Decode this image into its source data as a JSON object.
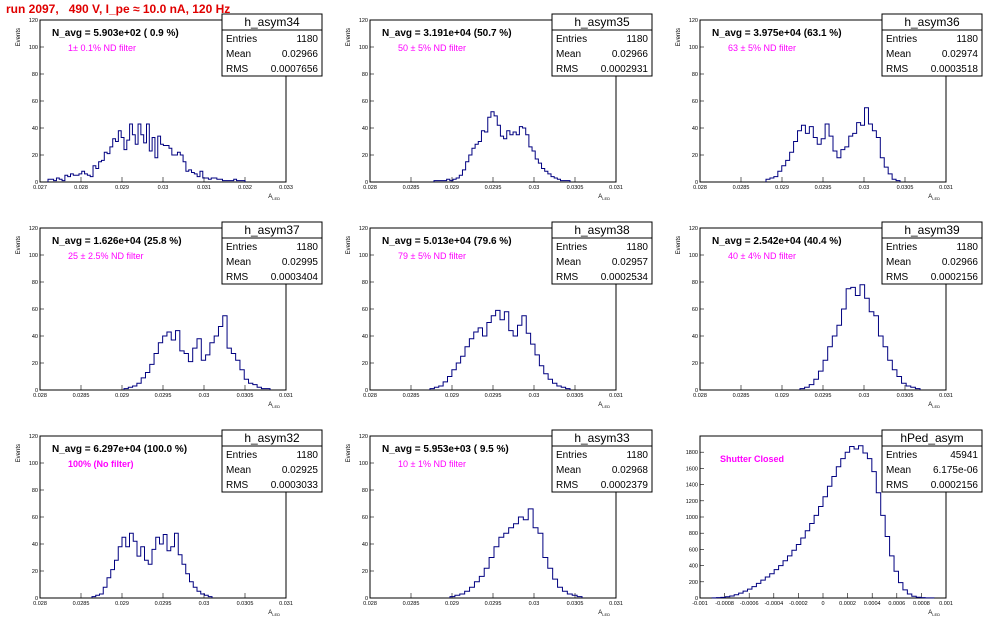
{
  "header": {
    "title": "run 2097,   490 V, I_pe ≈ 10.0 nA, 120 Hz"
  },
  "colors": {
    "hist_line": "#000080",
    "annotation": "#ff00ff",
    "run_title": "#e00000"
  },
  "chart_data": [
    {
      "type": "bar",
      "name": "h_asym34",
      "navg_label": "N_avg = 5.903e+02 ( 0.9 %)",
      "filter_label": "1± 0.1% ND filter",
      "stats": {
        "entries": "1180",
        "mean": "0.02966",
        "rms": "0.0007656"
      },
      "xlabel": "A_LED",
      "ylabel": "Events",
      "xlim": [
        0.027,
        0.033
      ],
      "ylim": [
        0,
        120
      ],
      "xticks": [
        "0.027",
        "0.028",
        "0.029",
        "0.03",
        "0.031",
        "0.032",
        "0.033"
      ],
      "yticks": [
        "0",
        "20",
        "40",
        "60",
        "80",
        "100",
        "120"
      ],
      "values": [
        2,
        2,
        1,
        3,
        2,
        1,
        5,
        4,
        6,
        5,
        5,
        6,
        8,
        6,
        5,
        4,
        12,
        10,
        15,
        16,
        22,
        21,
        26,
        32,
        30,
        38,
        33,
        24,
        31,
        43,
        35,
        28,
        43,
        35,
        29,
        43,
        23,
        33,
        18,
        34,
        28,
        27,
        27,
        25,
        20,
        20,
        22,
        20,
        15,
        8,
        9,
        7,
        6,
        4,
        8,
        3,
        3,
        2,
        3,
        3,
        2,
        2,
        1,
        1,
        1,
        1,
        2,
        1,
        1,
        1
      ]
    },
    {
      "type": "bar",
      "name": "h_asym35",
      "navg_label": "N_avg = 3.191e+04 (50.7 %)",
      "filter_label": "50 ± 5% ND filter",
      "stats": {
        "entries": "1180",
        "mean": "0.02966",
        "rms": "0.0002931"
      },
      "xlabel": "A_LED",
      "ylabel": "Events",
      "xlim": [
        0.028,
        0.031
      ],
      "ylim": [
        0,
        120
      ],
      "xticks": [
        "0.028",
        "0.0285",
        "0.029",
        "0.0295",
        "0.03",
        "0.0305",
        "0.031"
      ],
      "yticks": [
        "0",
        "20",
        "40",
        "60",
        "80",
        "100",
        "120"
      ],
      "values": [
        1,
        1,
        1,
        1,
        2,
        1,
        2,
        3,
        5,
        9,
        15,
        20,
        25,
        28,
        30,
        38,
        37,
        48,
        52,
        49,
        42,
        34,
        32,
        38,
        35,
        37,
        35,
        41,
        40,
        35,
        26,
        23,
        17,
        14,
        10,
        8,
        6,
        4,
        3,
        2,
        1,
        1,
        1
      ]
    },
    {
      "type": "bar",
      "name": "h_asym36",
      "navg_label": "N_avg = 3.975e+04 (63.1 %)",
      "filter_label": "63 ± 5% ND filter",
      "stats": {
        "entries": "1180",
        "mean": "0.02974",
        "rms": "0.0003518"
      },
      "xlabel": "A_LED",
      "ylabel": "Events",
      "xlim": [
        0.028,
        0.031
      ],
      "ylim": [
        0,
        120
      ],
      "xticks": [
        "0.028",
        "0.0285",
        "0.029",
        "0.0295",
        "0.03",
        "0.0305",
        "0.031"
      ],
      "yticks": [
        "0",
        "20",
        "40",
        "60",
        "80",
        "100",
        "120"
      ],
      "values": [
        2,
        3,
        4,
        8,
        12,
        16,
        22,
        30,
        38,
        42,
        36,
        41,
        33,
        28,
        32,
        43,
        34,
        23,
        18,
        24,
        26,
        34,
        36,
        44,
        42,
        55,
        43,
        38,
        33,
        18,
        11,
        6,
        2,
        1
      ]
    },
    {
      "type": "bar",
      "name": "h_asym37",
      "navg_label": "N_avg = 1.626e+04 (25.8 %)",
      "filter_label": "25 ± 2.5% ND filter",
      "stats": {
        "entries": "1180",
        "mean": "0.02995",
        "rms": "0.0003404"
      },
      "xlabel": "A_LED",
      "ylabel": "Events",
      "xlim": [
        0.028,
        0.031
      ],
      "ylim": [
        0,
        120
      ],
      "xticks": [
        "0.028",
        "0.0285",
        "0.029",
        "0.0295",
        "0.03",
        "0.0305",
        "0.031"
      ],
      "yticks": [
        "0",
        "20",
        "40",
        "60",
        "80",
        "100",
        "120"
      ],
      "values": [
        1,
        2,
        3,
        5,
        9,
        13,
        19,
        27,
        35,
        40,
        43,
        37,
        44,
        29,
        27,
        21,
        31,
        38,
        22,
        26,
        35,
        40,
        47,
        55,
        31,
        27,
        22,
        15,
        8,
        5,
        4,
        2,
        1,
        1
      ]
    },
    {
      "type": "bar",
      "name": "h_asym38",
      "navg_label": "N_avg = 5.013e+04 (79.6 %)",
      "filter_label": "79 ± 5% ND filter",
      "stats": {
        "entries": "1180",
        "mean": "0.02957",
        "rms": "0.0002534"
      },
      "xlabel": "A_LED",
      "ylabel": "Events",
      "xlim": [
        0.028,
        0.031
      ],
      "ylim": [
        0,
        120
      ],
      "xticks": [
        "0.028",
        "0.0285",
        "0.029",
        "0.0295",
        "0.03",
        "0.0305",
        "0.031"
      ],
      "yticks": [
        "0",
        "20",
        "40",
        "60",
        "80",
        "100",
        "120"
      ],
      "values": [
        1,
        2,
        3,
        6,
        10,
        15,
        20,
        25,
        32,
        38,
        43,
        46,
        40,
        50,
        55,
        59,
        52,
        58,
        44,
        40,
        48,
        55,
        42,
        34,
        26,
        18,
        12,
        8,
        5,
        3,
        2,
        1
      ]
    },
    {
      "type": "bar",
      "name": "h_asym39",
      "navg_label": "N_avg = 2.542e+04 (40.4 %)",
      "filter_label": "40 ± 4% ND filter",
      "stats": {
        "entries": "1180",
        "mean": "0.02966",
        "rms": "0.0002156"
      },
      "xlabel": "A_LED",
      "ylabel": "Events",
      "xlim": [
        0.028,
        0.031
      ],
      "ylim": [
        0,
        120
      ],
      "xticks": [
        "0.028",
        "0.0285",
        "0.029",
        "0.0295",
        "0.03",
        "0.0305",
        "0.031"
      ],
      "yticks": [
        "0",
        "20",
        "40",
        "60",
        "80",
        "100",
        "120"
      ],
      "values": [
        1,
        2,
        4,
        8,
        14,
        22,
        32,
        40,
        48,
        60,
        75,
        76,
        70,
        78,
        68,
        58,
        55,
        40,
        32,
        22,
        15,
        10,
        5,
        3,
        2,
        1
      ]
    },
    {
      "type": "bar",
      "name": "h_asym32",
      "navg_label": "N_avg = 6.297e+04 (100.0 %)",
      "filter_label": "100% (No filter)",
      "stats": {
        "entries": "1180",
        "mean": "0.02925",
        "rms": "0.0003033"
      },
      "xlabel": "A_LED",
      "ylabel": "Events",
      "xlim": [
        0.028,
        0.031
      ],
      "ylim": [
        0,
        120
      ],
      "xticks": [
        "0.028",
        "0.0285",
        "0.029",
        "0.0295",
        "0.03",
        "0.0305",
        "0.031"
      ],
      "yticks": [
        "0",
        "20",
        "40",
        "60",
        "80",
        "100",
        "120"
      ],
      "values": [
        1,
        2,
        3,
        8,
        15,
        21,
        28,
        38,
        45,
        38,
        48,
        42,
        31,
        38,
        28,
        25,
        36,
        45,
        40,
        47,
        35,
        38,
        48,
        32,
        25,
        18,
        12,
        8,
        5,
        3,
        2,
        1
      ]
    },
    {
      "type": "bar",
      "name": "h_asym33",
      "navg_label": "N_avg = 5.953e+03 ( 9.5 %)",
      "filter_label": "10 ± 1% ND filter",
      "stats": {
        "entries": "1180",
        "mean": "0.02968",
        "rms": "0.0002379"
      },
      "xlabel": "A_LED",
      "ylabel": "Events",
      "xlim": [
        0.028,
        0.031
      ],
      "ylim": [
        0,
        120
      ],
      "xticks": [
        "0.028",
        "0.0285",
        "0.029",
        "0.0295",
        "0.03",
        "0.0305",
        "0.031"
      ],
      "yticks": [
        "0",
        "20",
        "40",
        "60",
        "80",
        "100",
        "120"
      ],
      "values": [
        1,
        2,
        3,
        5,
        8,
        12,
        16,
        22,
        30,
        38,
        45,
        48,
        52,
        55,
        60,
        58,
        66,
        52,
        48,
        30,
        22,
        14,
        8,
        5,
        3,
        2,
        1
      ]
    },
    {
      "type": "bar",
      "name": "hPed_asym",
      "navg_label": "",
      "filter_label": "Shutter Closed",
      "stats": {
        "entries": "45941",
        "mean": "6.175e-06",
        "rms": "0.0002156"
      },
      "xlabel": "A_LED",
      "ylabel": "",
      "xlim": [
        -0.001,
        0.001
      ],
      "ylim": [
        0,
        2000
      ],
      "xticks": [
        "-0.001",
        "-0.0008",
        "-0.0006",
        "-0.0004",
        "-0.0002",
        "0",
        "0.0002",
        "0.0004",
        "0.0006",
        "0.0008",
        "0.001"
      ],
      "yticks": [
        "0",
        "200",
        "400",
        "600",
        "800",
        "1000",
        "1200",
        "1400",
        "1600",
        "1800"
      ],
      "values": [
        2,
        5,
        8,
        15,
        25,
        40,
        60,
        85,
        110,
        140,
        180,
        220,
        260,
        300,
        350,
        400,
        460,
        520,
        590,
        660,
        740,
        830,
        920,
        1020,
        1130,
        1250,
        1380,
        1500,
        1620,
        1720,
        1800,
        1870,
        1840,
        1880,
        1790,
        1720,
        1560,
        1300,
        1020,
        760,
        520,
        330,
        190,
        100,
        50,
        22,
        9,
        4,
        2,
        1
      ]
    }
  ]
}
